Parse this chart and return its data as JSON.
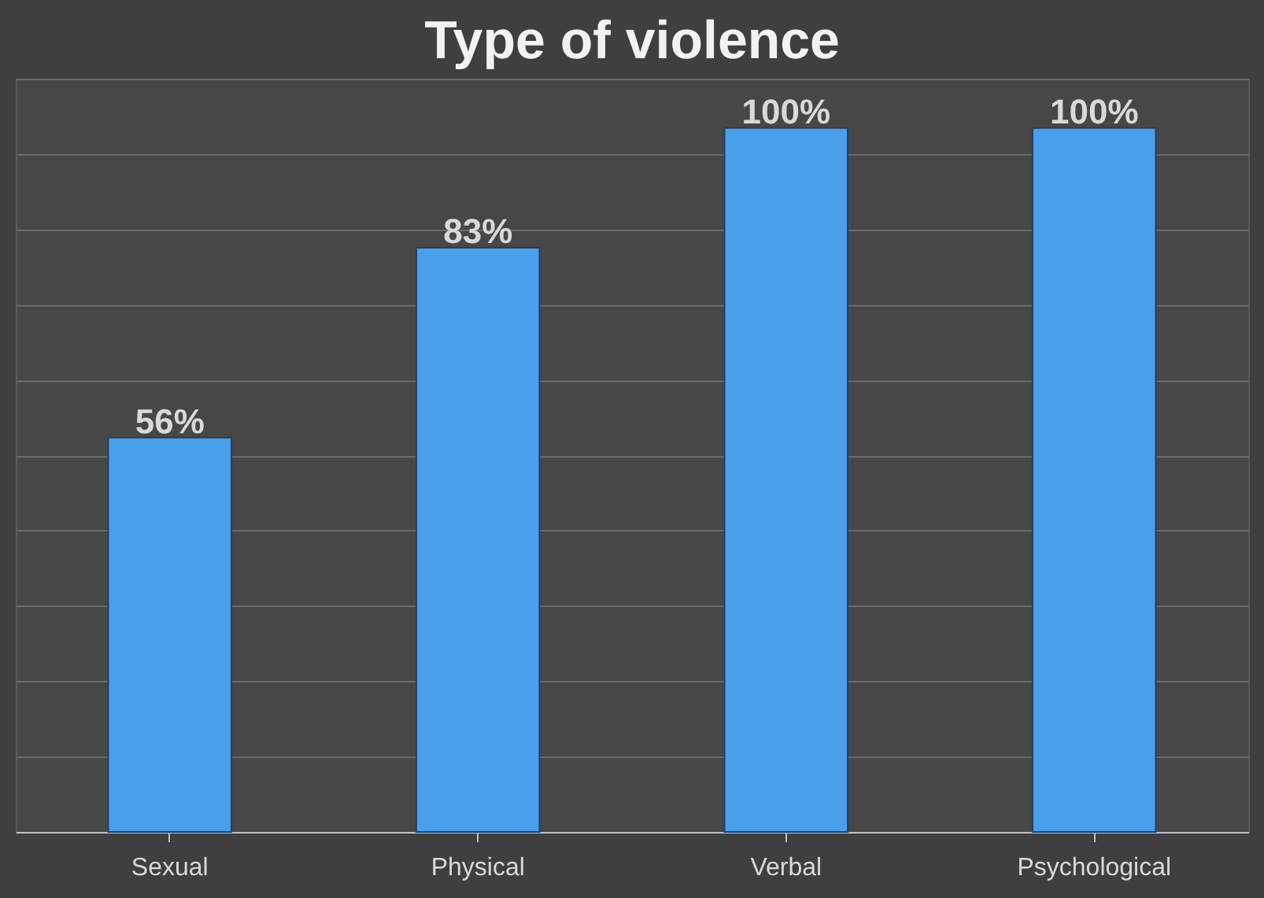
{
  "chart_data": {
    "type": "bar",
    "title": "Type of violence",
    "categories": [
      "Sexual",
      "Physical",
      "Verbal",
      "Psychological"
    ],
    "values": [
      56,
      83,
      100,
      100
    ],
    "color": "#4a9fea",
    "value_labels": [
      "56%",
      "83%",
      "100%",
      "100%"
    ],
    "ylim": [
      0,
      107
    ],
    "yticks": [
      {
        "value": 0,
        "label": null
      },
      {
        "value": 10.7,
        "label": null
      },
      {
        "value": 21.4,
        "label": null
      },
      {
        "value": 32.1,
        "label": null
      },
      {
        "value": 42.8,
        "label": null
      },
      {
        "value": 53.5,
        "label": null
      },
      {
        "value": 64.2,
        "label": null
      },
      {
        "value": 74.9,
        "label": null
      },
      {
        "value": 85.6,
        "label": null
      },
      {
        "value": 96.3,
        "label": null
      },
      {
        "value": 107,
        "label": null
      }
    ],
    "grid": true,
    "tick_labels": "x"
  }
}
